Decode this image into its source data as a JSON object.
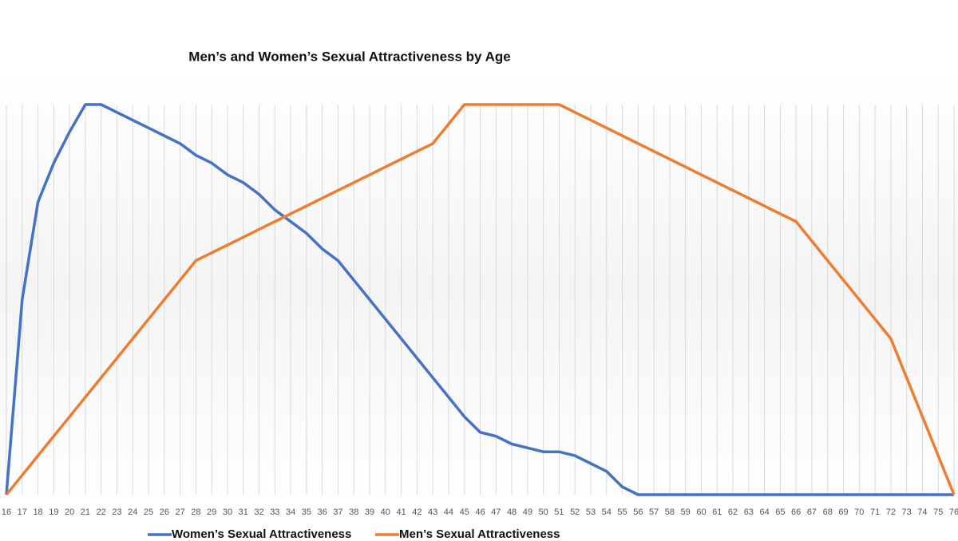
{
  "chart_data": {
    "type": "line",
    "title": "Men’s and Women’s Sexual Attractiveness by Age",
    "categories": [
      16,
      17,
      18,
      19,
      20,
      21,
      22,
      23,
      24,
      25,
      26,
      27,
      28,
      29,
      30,
      31,
      32,
      33,
      34,
      35,
      36,
      37,
      38,
      39,
      40,
      41,
      42,
      43,
      44,
      45,
      46,
      47,
      48,
      49,
      50,
      51,
      52,
      53,
      54,
      55,
      56,
      57,
      58,
      59,
      60,
      61,
      62,
      63,
      64,
      65,
      66,
      67,
      68,
      69,
      70,
      71,
      72,
      73,
      74,
      75,
      76
    ],
    "series": [
      {
        "name": "Women’s Sexual Attractiveness",
        "color": "#4472c4",
        "values": [
          0,
          50,
          75,
          85,
          93,
          100,
          100,
          98,
          96,
          94,
          92,
          90,
          87,
          85,
          82,
          80,
          77,
          73,
          70,
          67,
          63,
          60,
          55,
          50,
          45,
          40,
          35,
          30,
          25,
          20,
          16,
          15,
          13,
          12,
          11,
          11,
          10,
          8,
          6,
          2,
          0,
          0,
          0,
          0,
          0,
          0,
          0,
          0,
          0,
          0,
          0,
          0,
          0,
          0,
          0,
          0,
          0,
          0,
          0,
          0,
          0
        ]
      },
      {
        "name": "Men’s Sexual Attractiveness",
        "color": "#ed7d31",
        "values": [
          0,
          5,
          10,
          15,
          20,
          25,
          30,
          35,
          40,
          45,
          50,
          55,
          60,
          62,
          64,
          66,
          68,
          70,
          72,
          74,
          76,
          78,
          80,
          82,
          84,
          86,
          88,
          90,
          95,
          100,
          100,
          100,
          100,
          100,
          100,
          100,
          98,
          96,
          94,
          92,
          90,
          88,
          86,
          84,
          82,
          80,
          78,
          76,
          74,
          72,
          70,
          65,
          60,
          55,
          50,
          45,
          40,
          30,
          20,
          10,
          0
        ]
      }
    ],
    "ylim": [
      0,
      100
    ],
    "grid": true
  }
}
